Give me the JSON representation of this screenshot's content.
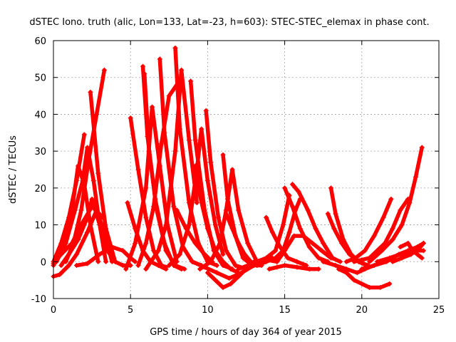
{
  "chart_data": {
    "type": "line",
    "title": "dSTEC Iono. truth (alic, Lon=133, Lat=-23, h=603): STEC-STEC_elemax in phase cont.",
    "xlabel": "GPS time / hours of day 364 of year 2015",
    "ylabel": "dSTEC  / TECUs",
    "xlim": [
      0,
      25
    ],
    "ylim": [
      -10,
      60
    ],
    "xticks": [
      0,
      5,
      10,
      15,
      20,
      25
    ],
    "yticks": [
      -10,
      0,
      10,
      20,
      30,
      40,
      50,
      60
    ],
    "grid": true,
    "legend": "none",
    "marker": "plus",
    "color": "#ff0000",
    "series": [
      {
        "x": [
          0.0,
          0.5,
          1.0,
          1.5,
          2.0
        ],
        "y": [
          0.0,
          5.0,
          12.0,
          22.0,
          34.5
        ]
      },
      {
        "x": [
          0.0,
          0.4,
          1.0,
          1.5,
          2.2,
          2.8,
          3.3,
          3.8
        ],
        "y": [
          -4.0,
          -3.5,
          -1.0,
          2.0,
          8.0,
          14.0,
          8.0,
          0.0
        ]
      },
      {
        "x": [
          0.0,
          0.6,
          1.2,
          1.6,
          2.0,
          2.4,
          2.9
        ],
        "y": [
          -1.0,
          4.0,
          14.0,
          26.0,
          21.0,
          10.0,
          0.0
        ]
      },
      {
        "x": [
          0.2,
          0.8,
          1.4,
          1.9,
          2.2,
          2.6,
          3.0,
          3.4
        ],
        "y": [
          0.0,
          5.0,
          14.0,
          22.0,
          31.0,
          22.0,
          10.0,
          0.0
        ]
      },
      {
        "x": [
          0.5,
          1.0,
          1.6,
          2.2,
          2.5,
          3.0,
          3.5,
          4.0
        ],
        "y": [
          -1.0,
          2.0,
          6.0,
          12.0,
          17.0,
          10.0,
          3.0,
          0.0
        ]
      },
      {
        "x": [
          0.0,
          0.5,
          1.2,
          1.8,
          2.5,
          3.2
        ],
        "y": [
          -0.5,
          2.0,
          5.0,
          10.0,
          15.0,
          12.0
        ]
      },
      {
        "x": [
          0.8,
          1.3,
          1.8,
          2.3,
          2.8,
          3.3
        ],
        "y": [
          0.0,
          5.0,
          14.0,
          28.0,
          40.0,
          52.0
        ]
      },
      {
        "x": [
          2.4,
          2.9,
          3.4,
          4.0,
          4.5,
          5.0
        ],
        "y": [
          46.0,
          24.0,
          9.0,
          0.0,
          -1.0,
          -1.0
        ]
      },
      {
        "x": [
          1.5,
          2.2,
          3.0,
          3.8,
          4.5,
          5.0,
          5.3
        ],
        "y": [
          -1.0,
          -0.5,
          2.0,
          4.0,
          3.0,
          1.0,
          0.0
        ]
      },
      {
        "x": [
          5.0,
          5.5,
          6.0,
          6.5,
          7.0,
          7.3
        ],
        "y": [
          39.0,
          25.0,
          12.0,
          3.0,
          -1.0,
          -1.5
        ]
      },
      {
        "x": [
          4.8,
          5.3,
          5.8,
          6.3,
          6.8,
          7.3
        ],
        "y": [
          16.0,
          9.0,
          3.0,
          0.0,
          -1.0,
          -2.0
        ]
      },
      {
        "x": [
          4.7,
          5.3,
          6.0,
          6.4,
          6.9,
          7.4,
          8.0
        ],
        "y": [
          -2.0,
          5.0,
          20.0,
          42.0,
          26.0,
          10.0,
          0.0
        ]
      },
      {
        "x": [
          5.8,
          6.1,
          6.6,
          7.2,
          7.8,
          8.3
        ],
        "y": [
          53.0,
          34.0,
          17.0,
          5.0,
          -1.0,
          -2.0
        ]
      },
      {
        "x": [
          5.5,
          6.0,
          6.5,
          7.0,
          7.5,
          8.0
        ],
        "y": [
          -1.0,
          5.0,
          15.0,
          32.0,
          45.0,
          48.0
        ]
      },
      {
        "x": [
          5.9,
          6.2,
          6.7,
          7.3,
          7.9,
          8.5
        ],
        "y": [
          51.0,
          30.0,
          14.0,
          3.0,
          -1.0,
          -2.0
        ]
      },
      {
        "x": [
          6.9,
          7.2,
          7.8,
          8.4,
          9.0,
          9.6
        ],
        "y": [
          55.0,
          35.0,
          15.0,
          4.0,
          0.0,
          -1.0
        ]
      },
      {
        "x": [
          6.0,
          6.8,
          7.3,
          7.9,
          8.3,
          8.8,
          9.3
        ],
        "y": [
          -2.0,
          3.0,
          10.0,
          30.0,
          52.0,
          33.0,
          16.0
        ]
      },
      {
        "x": [
          7.9,
          8.2,
          8.8,
          9.4,
          10.0,
          10.6
        ],
        "y": [
          58.0,
          36.0,
          16.0,
          5.0,
          0.0,
          -1.0
        ]
      },
      {
        "x": [
          8.0,
          8.6,
          9.2,
          9.8,
          10.3
        ],
        "y": [
          14.0,
          9.0,
          5.0,
          2.0,
          0.0
        ]
      },
      {
        "x": [
          7.5,
          8.2,
          8.8,
          9.3,
          9.6,
          10.0,
          10.5,
          11.0
        ],
        "y": [
          -1.0,
          2.0,
          10.0,
          25.0,
          36.0,
          22.0,
          10.0,
          2.0
        ]
      },
      {
        "x": [
          8.9,
          9.2,
          9.8,
          10.4,
          11.0,
          11.6
        ],
        "y": [
          49.0,
          33.0,
          14.0,
          3.0,
          -1.0,
          -2.0
        ]
      },
      {
        "x": [
          9.2,
          9.5,
          10.0,
          10.5,
          11.0,
          11.5,
          12.0
        ],
        "y": [
          26.0,
          18.0,
          9.0,
          3.0,
          0.0,
          -2.0,
          -3.0
        ]
      },
      {
        "x": [
          9.9,
          10.2,
          10.7,
          11.2,
          11.8,
          12.5
        ],
        "y": [
          41.0,
          27.0,
          12.0,
          3.0,
          -1.0,
          -2.0
        ]
      },
      {
        "x": [
          9.5,
          10.2,
          10.8,
          11.2,
          11.6,
          12.0,
          12.6,
          13.2
        ],
        "y": [
          -2.0,
          0.0,
          5.0,
          14.0,
          25.0,
          14.0,
          5.0,
          0.0
        ]
      },
      {
        "x": [
          11.0,
          11.3,
          11.8,
          12.3,
          12.9,
          13.5
        ],
        "y": [
          29.0,
          17.0,
          7.0,
          1.0,
          -1.0,
          -1.0
        ]
      },
      {
        "x": [
          11.2,
          11.6,
          12.0,
          12.4,
          12.8,
          13.2
        ],
        "y": [
          13.0,
          9.0,
          5.0,
          2.0,
          0.0,
          -1.0
        ]
      },
      {
        "x": [
          10.0,
          10.5,
          11.0,
          11.5,
          12.0,
          12.5,
          13.0,
          13.6,
          14.2
        ],
        "y": [
          -3.0,
          -5.0,
          -7.0,
          -6.0,
          -4.0,
          -2.0,
          0.0,
          0.5,
          1.0
        ]
      },
      {
        "x": [
          9.0,
          9.8,
          10.6,
          11.4,
          12.2,
          13.0,
          13.8,
          14.5
        ],
        "y": [
          0.0,
          -1.5,
          -3.0,
          -4.5,
          -3.0,
          -1.0,
          0.5,
          0.0
        ]
      },
      {
        "x": [
          12.0,
          12.6,
          13.2,
          13.8,
          14.4,
          14.9,
          15.3
        ],
        "y": [
          -2.0,
          -1.0,
          0.0,
          1.0,
          3.0,
          10.0,
          18.0
        ]
      },
      {
        "x": [
          13.8,
          14.2,
          14.7,
          15.2,
          15.8,
          16.4
        ],
        "y": [
          12.0,
          8.0,
          4.0,
          1.0,
          0.0,
          -1.0
        ]
      },
      {
        "x": [
          13.2,
          13.8,
          14.4,
          14.9,
          15.3,
          15.7,
          16.0
        ],
        "y": [
          -1.0,
          0.0,
          1.0,
          3.0,
          8.0,
          14.0,
          17.0
        ]
      },
      {
        "x": [
          15.0,
          15.5,
          16.0,
          16.6,
          17.2,
          17.8
        ],
        "y": [
          20.0,
          15.0,
          9.0,
          4.0,
          1.0,
          0.0
        ]
      },
      {
        "x": [
          15.5,
          15.9,
          16.5,
          17.0,
          17.5,
          18.1,
          18.6
        ],
        "y": [
          21.0,
          19.0,
          14.0,
          9.0,
          5.0,
          1.0,
          0.0
        ]
      },
      {
        "x": [
          14.5,
          15.0,
          15.6,
          16.2,
          16.8,
          17.4,
          18.0
        ],
        "y": [
          0.0,
          3.0,
          7.0,
          7.0,
          5.0,
          3.0,
          1.0
        ]
      },
      {
        "x": [
          14.0,
          14.5,
          15.0,
          15.8,
          16.6,
          17.2
        ],
        "y": [
          -2.0,
          -1.5,
          -1.0,
          -1.5,
          -2.0,
          -2.0
        ]
      },
      {
        "x": [
          17.8,
          18.2,
          18.7,
          19.2,
          19.8,
          20.3
        ],
        "y": [
          13.0,
          9.0,
          5.0,
          2.0,
          0.0,
          -1.0
        ]
      },
      {
        "x": [
          18.0,
          18.3,
          18.8,
          19.3,
          19.8,
          20.4
        ],
        "y": [
          20.0,
          13.0,
          6.0,
          2.0,
          0.0,
          -1.0
        ]
      },
      {
        "x": [
          17.5,
          18.3,
          19.0,
          19.7,
          20.2,
          20.8
        ],
        "y": [
          0.0,
          -1.0,
          -2.0,
          -3.0,
          -2.0,
          -1.0
        ]
      },
      {
        "x": [
          18.5,
          19.0,
          19.5,
          20.0,
          20.5,
          21.2,
          21.8
        ],
        "y": [
          -2.0,
          -3.0,
          -5.0,
          -6.0,
          -7.0,
          -7.0,
          -6.0
        ]
      },
      {
        "x": [
          19.5,
          20.0,
          20.5,
          21.0,
          21.5,
          22.0,
          22.5,
          23.0
        ],
        "y": [
          0.0,
          0.5,
          1.0,
          3.0,
          5.0,
          9.0,
          14.0,
          17.0
        ]
      },
      {
        "x": [
          19.0,
          19.6,
          20.2,
          20.8,
          21.4,
          21.9
        ],
        "y": [
          0.0,
          1.0,
          3.0,
          7.0,
          12.0,
          17.0
        ]
      },
      {
        "x": [
          20.5,
          21.3,
          22.0,
          22.6,
          23.1,
          23.5,
          23.9
        ],
        "y": [
          0.0,
          3.0,
          6.0,
          10.0,
          16.0,
          23.0,
          31.0
        ]
      },
      {
        "x": [
          20.0,
          20.8,
          21.6,
          22.4,
          23.0,
          23.6,
          24.0
        ],
        "y": [
          -2.0,
          -1.0,
          0.0,
          2.0,
          3.0,
          4.0,
          5.0
        ]
      },
      {
        "x": [
          21.0,
          21.8,
          22.5,
          23.1,
          23.6,
          24.0
        ],
        "y": [
          0.0,
          1.0,
          2.0,
          2.0,
          3.0,
          3.0
        ]
      },
      {
        "x": [
          22.5,
          23.0,
          23.3,
          23.6,
          23.9
        ],
        "y": [
          4.0,
          5.0,
          3.0,
          2.0,
          1.0
        ]
      },
      {
        "x": [
          22.0,
          22.6,
          23.2,
          23.8,
          24.0
        ],
        "y": [
          0.0,
          1.0,
          2.0,
          4.0,
          5.0
        ]
      }
    ]
  }
}
